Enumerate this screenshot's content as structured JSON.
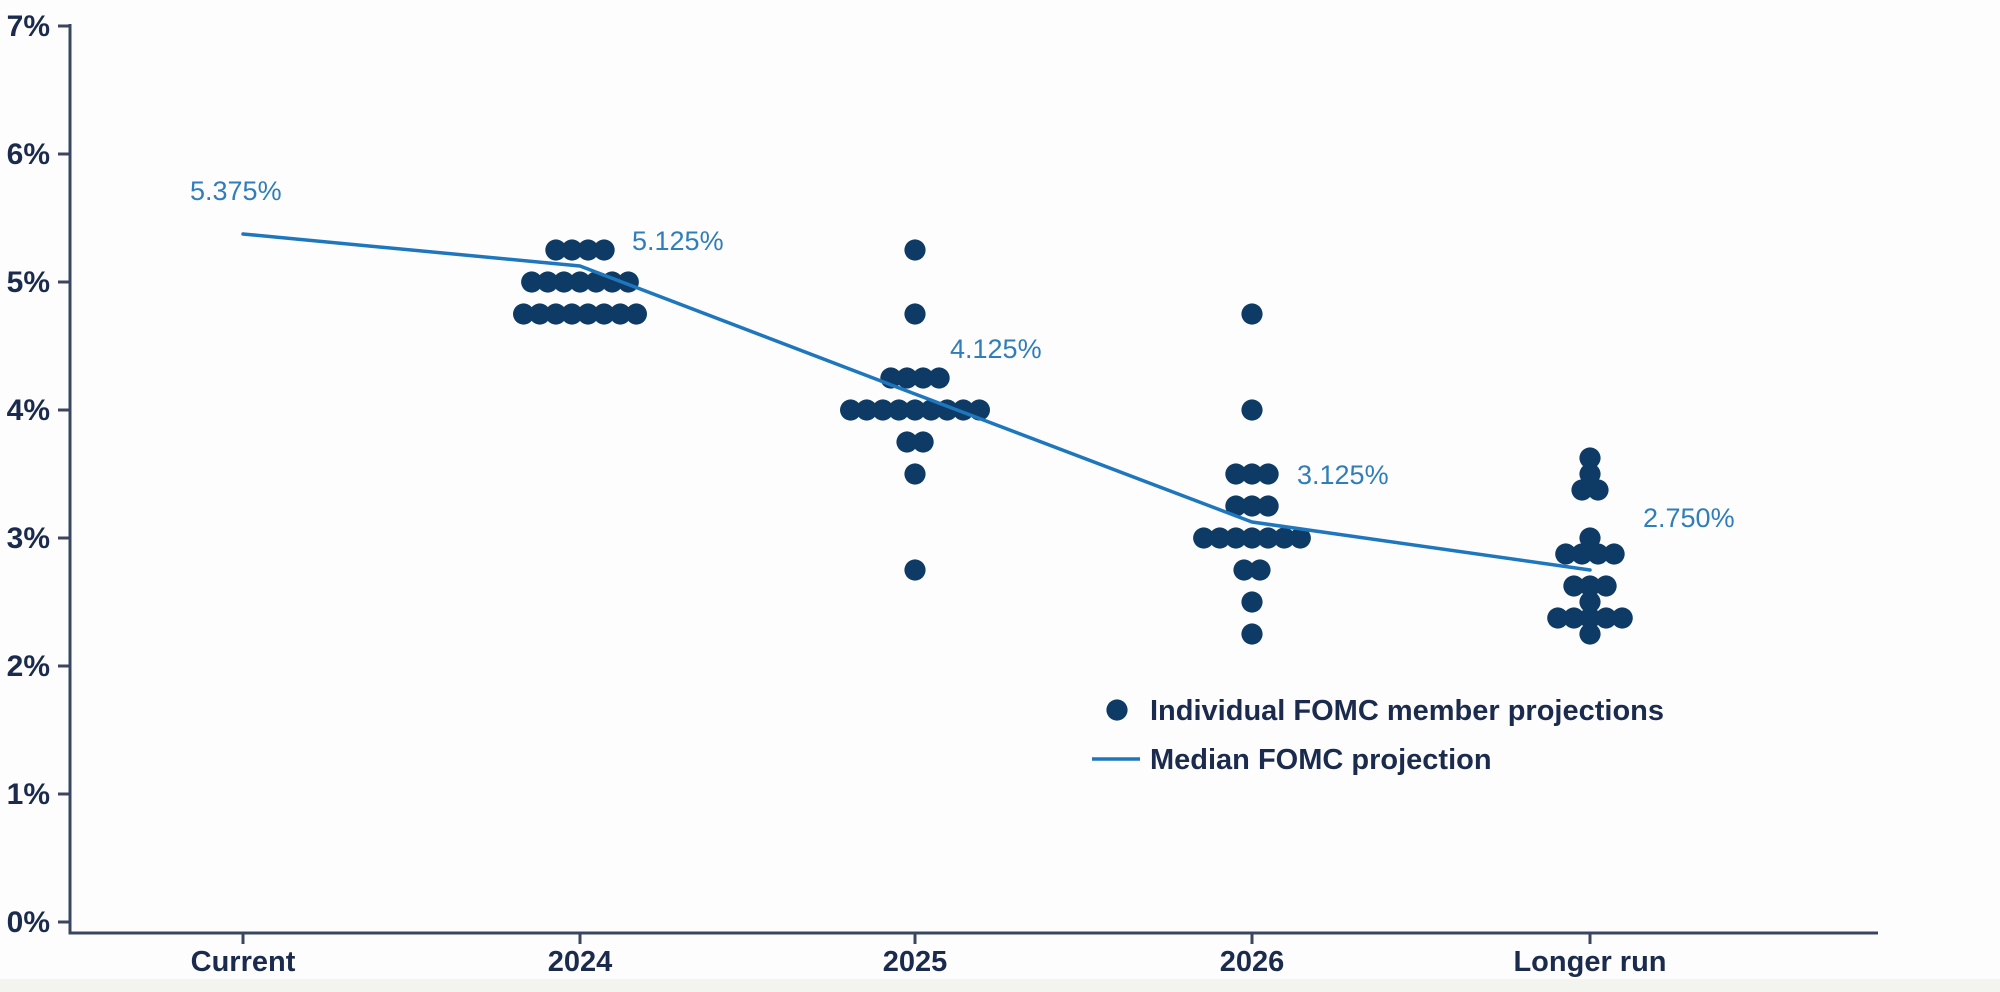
{
  "chart_data": {
    "type": "scatter",
    "description": "FOMC dot plot: individual member rate projections with median line",
    "categories": [
      "Current",
      "2024",
      "2025",
      "2026",
      "Longer run"
    ],
    "ylim": [
      0,
      7
    ],
    "y_ticks": [
      "0%",
      "1%",
      "2%",
      "3%",
      "4%",
      "5%",
      "6%",
      "7%"
    ],
    "grid": false,
    "median_series": {
      "name": "Median FOMC projection",
      "x": [
        "Current",
        "2024",
        "2025",
        "2026",
        "Longer run"
      ],
      "values": [
        5.375,
        5.125,
        4.125,
        3.125,
        2.75
      ],
      "point_labels": [
        "5.375%",
        "5.125%",
        "4.125%",
        "3.125%",
        "2.750%"
      ]
    },
    "dot_series": {
      "name": "Individual FOMC member projections",
      "groups": [
        {
          "category": "2024",
          "distribution": [
            {
              "value": 5.25,
              "count": 4
            },
            {
              "value": 5.0,
              "count": 7
            },
            {
              "value": 4.75,
              "count": 8
            }
          ]
        },
        {
          "category": "2025",
          "distribution": [
            {
              "value": 5.25,
              "count": 1
            },
            {
              "value": 4.75,
              "count": 1
            },
            {
              "value": 4.25,
              "count": 4
            },
            {
              "value": 4.0,
              "count": 9
            },
            {
              "value": 3.75,
              "count": 2
            },
            {
              "value": 3.5,
              "count": 1
            },
            {
              "value": 2.75,
              "count": 1
            }
          ]
        },
        {
          "category": "2026",
          "distribution": [
            {
              "value": 4.75,
              "count": 1
            },
            {
              "value": 4.0,
              "count": 1
            },
            {
              "value": 3.5,
              "count": 3
            },
            {
              "value": 3.25,
              "count": 3
            },
            {
              "value": 3.0,
              "count": 7
            },
            {
              "value": 2.75,
              "count": 2
            },
            {
              "value": 2.5,
              "count": 1
            },
            {
              "value": 2.25,
              "count": 1
            }
          ]
        },
        {
          "category": "Longer run",
          "distribution": [
            {
              "value": 3.625,
              "count": 1
            },
            {
              "value": 3.5,
              "count": 1
            },
            {
              "value": 3.375,
              "count": 2
            },
            {
              "value": 3.0,
              "count": 1
            },
            {
              "value": 2.875,
              "count": 4
            },
            {
              "value": 2.625,
              "count": 3
            },
            {
              "value": 2.5,
              "count": 1
            },
            {
              "value": 2.375,
              "count": 5
            },
            {
              "value": 2.25,
              "count": 1
            }
          ]
        }
      ]
    },
    "legend": {
      "position": "inside-bottom-right",
      "entries": [
        {
          "marker": "dot",
          "label": "Individual FOMC member projections"
        },
        {
          "marker": "line",
          "label": "Median FOMC projection"
        }
      ]
    }
  },
  "colors": {
    "dot": "#0e3a66",
    "median_line": "#1e76bc",
    "median_label": "#2f7db9",
    "axis_text": "#1b2b4d",
    "axis_line": "#3a4660",
    "background": "#fdfdfd",
    "bottom_band": "#f3f4ee"
  }
}
